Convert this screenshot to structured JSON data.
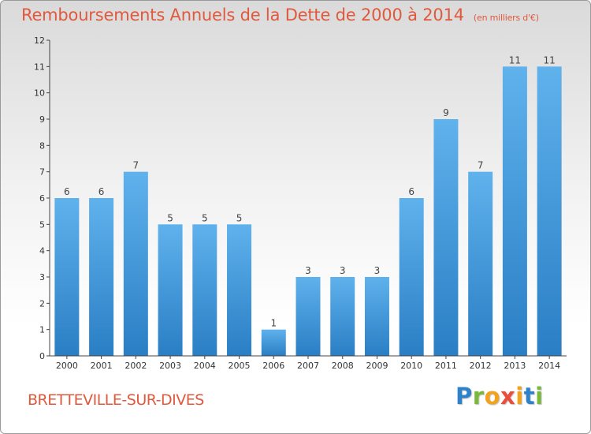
{
  "header": {
    "title": "Remboursements Annuels de la Dette de 2000 à 2014",
    "unit": "(en milliers d'€)"
  },
  "footer": {
    "place": "BRETTEVILLE-SUR-DIVES",
    "logo": "Proxiti"
  },
  "chart_data": {
    "type": "bar",
    "title": "Remboursements Annuels de la Dette de 2000 à 2014",
    "xlabel": "",
    "ylabel": "",
    "categories": [
      "2000",
      "2001",
      "2002",
      "2003",
      "2004",
      "2005",
      "2006",
      "2007",
      "2008",
      "2009",
      "2010",
      "2011",
      "2012",
      "2013",
      "2014"
    ],
    "values": [
      6,
      6,
      7,
      5,
      5,
      5,
      1,
      3,
      3,
      3,
      6,
      9,
      7,
      11,
      11
    ],
    "ylim": [
      0,
      12
    ],
    "yticks": [
      0,
      1,
      2,
      3,
      4,
      5,
      6,
      7,
      8,
      9,
      10,
      11,
      12
    ],
    "grid": false,
    "bar_color": "#4a9fe0"
  }
}
